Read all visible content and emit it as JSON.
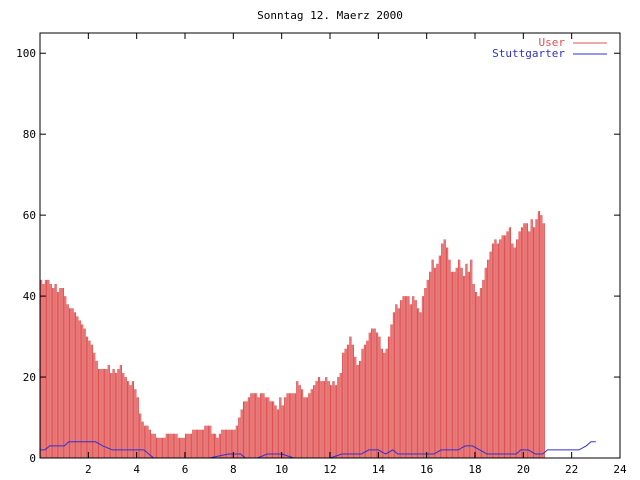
{
  "chart_data": {
    "type": "bar",
    "title": "Sonntag 12. Maerz 2000",
    "xlabel": "",
    "ylabel": "",
    "xlim": [
      0,
      24
    ],
    "ylim": [
      0,
      105
    ],
    "x_ticks": [
      2,
      4,
      6,
      8,
      10,
      12,
      14,
      16,
      18,
      20,
      22,
      24
    ],
    "y_ticks": [
      0,
      20,
      40,
      60,
      80,
      100
    ],
    "legend_position": "top-right",
    "series": [
      {
        "name": "User",
        "style": "impulses",
        "color": "#e05050",
        "points": [
          [
            0.0,
            44
          ],
          [
            0.1,
            43
          ],
          [
            0.2,
            44
          ],
          [
            0.3,
            44
          ],
          [
            0.4,
            43
          ],
          [
            0.5,
            42
          ],
          [
            0.6,
            43
          ],
          [
            0.7,
            41
          ],
          [
            0.8,
            42
          ],
          [
            0.9,
            42
          ],
          [
            1.0,
            40
          ],
          [
            1.1,
            38
          ],
          [
            1.2,
            37
          ],
          [
            1.3,
            37
          ],
          [
            1.4,
            36
          ],
          [
            1.5,
            35
          ],
          [
            1.6,
            34
          ],
          [
            1.7,
            33
          ],
          [
            1.8,
            32
          ],
          [
            1.9,
            30
          ],
          [
            2.0,
            29
          ],
          [
            2.1,
            28
          ],
          [
            2.2,
            26
          ],
          [
            2.3,
            24
          ],
          [
            2.4,
            22
          ],
          [
            2.5,
            22
          ],
          [
            2.6,
            22
          ],
          [
            2.7,
            22
          ],
          [
            2.8,
            23
          ],
          [
            2.9,
            21
          ],
          [
            3.0,
            22
          ],
          [
            3.1,
            21
          ],
          [
            3.2,
            22
          ],
          [
            3.3,
            23
          ],
          [
            3.4,
            21
          ],
          [
            3.5,
            20
          ],
          [
            3.6,
            19
          ],
          [
            3.7,
            18
          ],
          [
            3.8,
            19
          ],
          [
            3.9,
            17
          ],
          [
            4.0,
            15
          ],
          [
            4.1,
            11
          ],
          [
            4.2,
            9
          ],
          [
            4.3,
            8
          ],
          [
            4.4,
            8
          ],
          [
            4.5,
            7
          ],
          [
            4.6,
            6
          ],
          [
            4.7,
            6
          ],
          [
            4.8,
            5
          ],
          [
            4.9,
            5
          ],
          [
            5.0,
            5
          ],
          [
            5.1,
            5
          ],
          [
            5.2,
            6
          ],
          [
            5.3,
            6
          ],
          [
            5.4,
            6
          ],
          [
            5.5,
            6
          ],
          [
            5.6,
            6
          ],
          [
            5.7,
            5
          ],
          [
            5.8,
            5
          ],
          [
            5.9,
            5
          ],
          [
            6.0,
            6
          ],
          [
            6.1,
            6
          ],
          [
            6.2,
            6
          ],
          [
            6.3,
            7
          ],
          [
            6.4,
            7
          ],
          [
            6.5,
            7
          ],
          [
            6.6,
            7
          ],
          [
            6.7,
            7
          ],
          [
            6.8,
            8
          ],
          [
            6.9,
            8
          ],
          [
            7.0,
            8
          ],
          [
            7.1,
            6
          ],
          [
            7.2,
            6
          ],
          [
            7.3,
            5
          ],
          [
            7.4,
            6
          ],
          [
            7.5,
            7
          ],
          [
            7.6,
            7
          ],
          [
            7.7,
            7
          ],
          [
            7.8,
            7
          ],
          [
            7.9,
            7
          ],
          [
            8.0,
            7
          ],
          [
            8.1,
            8
          ],
          [
            8.2,
            10
          ],
          [
            8.3,
            12
          ],
          [
            8.4,
            14
          ],
          [
            8.5,
            14
          ],
          [
            8.6,
            15
          ],
          [
            8.7,
            16
          ],
          [
            8.8,
            16
          ],
          [
            8.9,
            16
          ],
          [
            9.0,
            15
          ],
          [
            9.1,
            16
          ],
          [
            9.2,
            16
          ],
          [
            9.3,
            15
          ],
          [
            9.4,
            15
          ],
          [
            9.5,
            14
          ],
          [
            9.6,
            14
          ],
          [
            9.7,
            13
          ],
          [
            9.8,
            12
          ],
          [
            9.9,
            15
          ],
          [
            10.0,
            13
          ],
          [
            10.1,
            15
          ],
          [
            10.2,
            16
          ],
          [
            10.3,
            16
          ],
          [
            10.4,
            16
          ],
          [
            10.5,
            16
          ],
          [
            10.6,
            19
          ],
          [
            10.7,
            18
          ],
          [
            10.8,
            17
          ],
          [
            10.9,
            15
          ],
          [
            11.0,
            15
          ],
          [
            11.1,
            16
          ],
          [
            11.2,
            17
          ],
          [
            11.3,
            18
          ],
          [
            11.4,
            19
          ],
          [
            11.5,
            20
          ],
          [
            11.6,
            19
          ],
          [
            11.7,
            19
          ],
          [
            11.8,
            20
          ],
          [
            11.9,
            19
          ],
          [
            12.0,
            18
          ],
          [
            12.1,
            19
          ],
          [
            12.2,
            18
          ],
          [
            12.3,
            20
          ],
          [
            12.4,
            21
          ],
          [
            12.5,
            26
          ],
          [
            12.6,
            27
          ],
          [
            12.7,
            28
          ],
          [
            12.8,
            30
          ],
          [
            12.9,
            28
          ],
          [
            13.0,
            25
          ],
          [
            13.1,
            23
          ],
          [
            13.2,
            24
          ],
          [
            13.3,
            27
          ],
          [
            13.4,
            28
          ],
          [
            13.5,
            29
          ],
          [
            13.6,
            31
          ],
          [
            13.7,
            32
          ],
          [
            13.8,
            32
          ],
          [
            13.9,
            31
          ],
          [
            14.0,
            30
          ],
          [
            14.1,
            27
          ],
          [
            14.2,
            26
          ],
          [
            14.3,
            27
          ],
          [
            14.4,
            30
          ],
          [
            14.5,
            33
          ],
          [
            14.6,
            36
          ],
          [
            14.7,
            38
          ],
          [
            14.8,
            37
          ],
          [
            14.9,
            39
          ],
          [
            15.0,
            40
          ],
          [
            15.1,
            40
          ],
          [
            15.2,
            40
          ],
          [
            15.3,
            38
          ],
          [
            15.4,
            40
          ],
          [
            15.5,
            39
          ],
          [
            15.6,
            37
          ],
          [
            15.7,
            36
          ],
          [
            15.8,
            40
          ],
          [
            15.9,
            42
          ],
          [
            16.0,
            44
          ],
          [
            16.1,
            46
          ],
          [
            16.2,
            49
          ],
          [
            16.3,
            47
          ],
          [
            16.4,
            48
          ],
          [
            16.5,
            50
          ],
          [
            16.6,
            53
          ],
          [
            16.7,
            54
          ],
          [
            16.8,
            52
          ],
          [
            16.9,
            49
          ],
          [
            17.0,
            46
          ],
          [
            17.1,
            46
          ],
          [
            17.2,
            47
          ],
          [
            17.3,
            49
          ],
          [
            17.4,
            47
          ],
          [
            17.5,
            45
          ],
          [
            17.6,
            48
          ],
          [
            17.7,
            46
          ],
          [
            17.8,
            49
          ],
          [
            17.9,
            43
          ],
          [
            18.0,
            41
          ],
          [
            18.1,
            40
          ],
          [
            18.2,
            42
          ],
          [
            18.3,
            44
          ],
          [
            18.4,
            47
          ],
          [
            18.5,
            49
          ],
          [
            18.6,
            51
          ],
          [
            18.7,
            53
          ],
          [
            18.8,
            54
          ],
          [
            18.9,
            53
          ],
          [
            19.0,
            54
          ],
          [
            19.1,
            55
          ],
          [
            19.2,
            55
          ],
          [
            19.3,
            56
          ],
          [
            19.4,
            57
          ],
          [
            19.5,
            53
          ],
          [
            19.6,
            52
          ],
          [
            19.7,
            54
          ],
          [
            19.8,
            56
          ],
          [
            19.9,
            57
          ],
          [
            20.0,
            58
          ],
          [
            20.1,
            58
          ],
          [
            20.2,
            56
          ],
          [
            20.3,
            59
          ],
          [
            20.4,
            57
          ],
          [
            20.5,
            59
          ],
          [
            20.6,
            61
          ],
          [
            20.7,
            60
          ],
          [
            20.8,
            58
          ]
        ]
      },
      {
        "name": "Stuttgarter",
        "style": "line",
        "color": "#3030d0",
        "points": [
          [
            0.0,
            2
          ],
          [
            0.2,
            2
          ],
          [
            0.4,
            3
          ],
          [
            0.7,
            3
          ],
          [
            1.0,
            3
          ],
          [
            1.2,
            4
          ],
          [
            1.5,
            4
          ],
          [
            2.0,
            4
          ],
          [
            2.3,
            4
          ],
          [
            2.6,
            3
          ],
          [
            3.0,
            2
          ],
          [
            3.5,
            2
          ],
          [
            4.0,
            2
          ],
          [
            4.3,
            2
          ],
          [
            4.5,
            1
          ],
          [
            4.7,
            0
          ],
          [
            5.0,
            0
          ],
          [
            6.0,
            0
          ],
          [
            7.0,
            0
          ],
          [
            7.8,
            1
          ],
          [
            8.0,
            1
          ],
          [
            8.3,
            1
          ],
          [
            8.5,
            0
          ],
          [
            9.0,
            0
          ],
          [
            9.4,
            1
          ],
          [
            10.0,
            1
          ],
          [
            10.5,
            0
          ],
          [
            11.0,
            0
          ],
          [
            12.0,
            0
          ],
          [
            12.5,
            1
          ],
          [
            13.0,
            1
          ],
          [
            13.3,
            1
          ],
          [
            13.6,
            2
          ],
          [
            14.0,
            2
          ],
          [
            14.3,
            1
          ],
          [
            14.6,
            2
          ],
          [
            14.8,
            1
          ],
          [
            15.0,
            1
          ],
          [
            15.3,
            1
          ],
          [
            15.6,
            1
          ],
          [
            16.0,
            1
          ],
          [
            16.3,
            1
          ],
          [
            16.6,
            2
          ],
          [
            17.0,
            2
          ],
          [
            17.3,
            2
          ],
          [
            17.6,
            3
          ],
          [
            17.9,
            3
          ],
          [
            18.2,
            2
          ],
          [
            18.5,
            1
          ],
          [
            19.0,
            1
          ],
          [
            19.4,
            1
          ],
          [
            19.7,
            1
          ],
          [
            19.9,
            2
          ],
          [
            20.2,
            2
          ],
          [
            20.5,
            1
          ],
          [
            20.8,
            1
          ],
          [
            21.0,
            2
          ],
          [
            21.3,
            2
          ],
          [
            21.7,
            2
          ],
          [
            22.0,
            2
          ],
          [
            22.3,
            2
          ],
          [
            22.6,
            3
          ],
          [
            22.8,
            4
          ],
          [
            23.0,
            4
          ]
        ]
      }
    ]
  }
}
